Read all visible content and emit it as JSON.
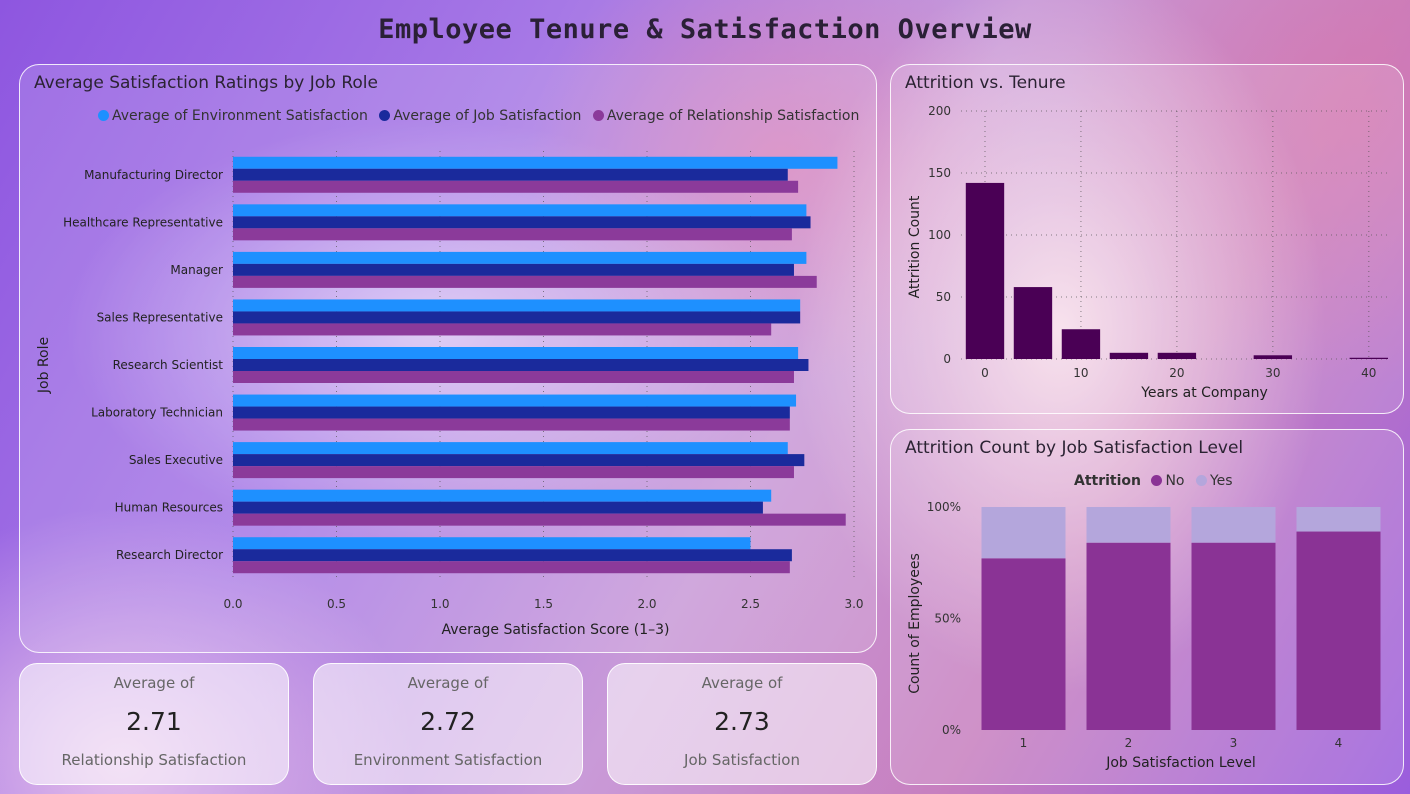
{
  "page_title": "Employee Tenure & Satisfaction Overview",
  "colors": {
    "environment": "#1e90ff",
    "job": "#1a2a9c",
    "relationship": "#8b3a9a",
    "tenure_bar": "#4a0055",
    "attr_no": "#8a3395",
    "attr_yes": "#b4a6dc"
  },
  "satisfaction_chart": {
    "title": "Average Satisfaction Ratings by Job Role",
    "legend": [
      {
        "label": "Average of Environment Satisfaction",
        "color": "#1e90ff"
      },
      {
        "label": "Average of Job Satisfaction",
        "color": "#1a2a9c"
      },
      {
        "label": "Average of Relationship Satisfaction",
        "color": "#8b3a9a"
      }
    ]
  },
  "tenure_chart": {
    "title": "Attrition vs. Tenure"
  },
  "level_chart": {
    "title": "Attrition Count by Job Satisfaction Level",
    "legend_title": "Attrition",
    "legend": [
      {
        "label": "No",
        "color": "#8a3395"
      },
      {
        "label": "Yes",
        "color": "#b4a6dc"
      }
    ]
  },
  "kpis": [
    {
      "top": "Average of",
      "value": "2.71",
      "bottom": "Relationship Satisfaction"
    },
    {
      "top": "Average of",
      "value": "2.72",
      "bottom": "Environment Satisfaction"
    },
    {
      "top": "Average of",
      "value": "2.73",
      "bottom": "Job Satisfaction"
    }
  ],
  "chart_data": [
    {
      "type": "bar",
      "orientation": "horizontal",
      "title": "Average Satisfaction Ratings by Job Role",
      "xlabel": "Average Satisfaction Score (1–3)",
      "ylabel": "Job Role",
      "xlim": [
        0,
        3
      ],
      "xticks": [
        "0.0",
        "0.5",
        "1.0",
        "1.5",
        "2.0",
        "2.5",
        "3.0"
      ],
      "grid": "vertical-dotted",
      "legend_position": "top",
      "categories": [
        "Manufacturing Director",
        "Healthcare Representative",
        "Manager",
        "Sales Representative",
        "Research Scientist",
        "Laboratory Technician",
        "Sales Executive",
        "Human Resources",
        "Research Director"
      ],
      "series": [
        {
          "name": "Average of Environment Satisfaction",
          "values": [
            2.92,
            2.77,
            2.77,
            2.74,
            2.73,
            2.72,
            2.68,
            2.6,
            2.5
          ]
        },
        {
          "name": "Average of Job Satisfaction",
          "values": [
            2.68,
            2.79,
            2.71,
            2.74,
            2.78,
            2.69,
            2.76,
            2.56,
            2.7
          ]
        },
        {
          "name": "Average of Relationship Satisfaction",
          "values": [
            2.73,
            2.7,
            2.82,
            2.6,
            2.71,
            2.69,
            2.71,
            2.96,
            2.69
          ]
        }
      ]
    },
    {
      "type": "bar",
      "title": "Attrition vs. Tenure",
      "xlabel": "Years at Company",
      "ylabel": "Attrition Count",
      "x": [
        0,
        5,
        10,
        15,
        20,
        30,
        40
      ],
      "values": [
        142,
        58,
        24,
        5,
        5,
        3,
        1
      ],
      "xticks": [
        "0",
        "10",
        "20",
        "30",
        "40"
      ],
      "xlim": [
        -2.5,
        42
      ],
      "ylim": [
        0,
        200
      ],
      "yticks": [
        "0",
        "50",
        "100",
        "150",
        "200"
      ],
      "grid": "dotted"
    },
    {
      "type": "bar",
      "stacked": "percent",
      "title": "Attrition Count by Job Satisfaction Level",
      "xlabel": "Job Satisfaction Level",
      "ylabel": "Count of Employees",
      "categories": [
        "1",
        "2",
        "3",
        "4"
      ],
      "yticks": [
        "0%",
        "50%",
        "100%"
      ],
      "legend_title": "Attrition",
      "legend_position": "top",
      "series": [
        {
          "name": "No",
          "values": [
            77,
            84,
            84,
            89
          ]
        },
        {
          "name": "Yes",
          "values": [
            23,
            16,
            16,
            11
          ]
        }
      ]
    }
  ]
}
